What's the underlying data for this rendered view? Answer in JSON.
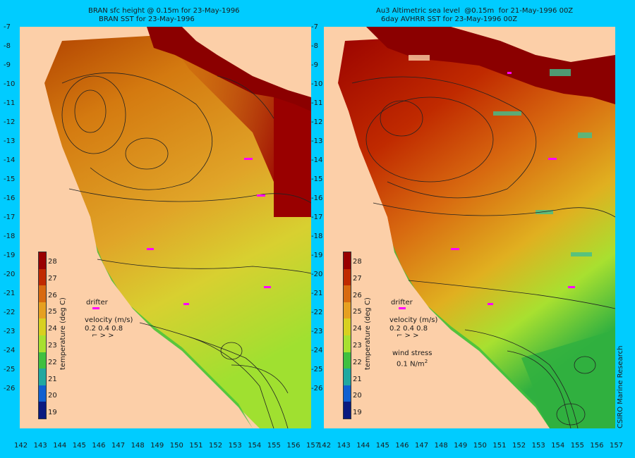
{
  "left_panel": {
    "title_line1": "BRAN sfc height @ 0.15m for 23-May-1996",
    "title_line2": "BRAN SST for 23-May-1996"
  },
  "right_panel": {
    "title_line1": "Au3 Altimetric sea level  @0.15m  for 21-May-1996 00Z",
    "title_line2": "6day AVHRR SST for 23-May-1996 00Z"
  },
  "axes": {
    "lat_ticks": [
      "-7",
      "-8",
      "-9",
      "-10",
      "-11",
      "-12",
      "-13",
      "-14",
      "-15",
      "-16",
      "-17",
      "-18",
      "-19",
      "-20",
      "-21",
      "-22",
      "-23",
      "-24",
      "-25",
      "-26"
    ],
    "left_lon_ticks": [
      "142",
      "143",
      "144",
      "145",
      "146",
      "147",
      "148",
      "149",
      "150",
      "151",
      "152",
      "153",
      "154",
      "155",
      "156",
      "157"
    ],
    "right_lon_ticks": [
      "142",
      "143",
      "144",
      "145",
      "146",
      "147",
      "148",
      "149",
      "150",
      "151",
      "152",
      "153",
      "154",
      "155",
      "156",
      "157"
    ]
  },
  "colorbar": {
    "title": "temperature (deg C)",
    "labels": [
      "28",
      "27",
      "26",
      "25",
      "24",
      "23",
      "22",
      "21",
      "20",
      "19"
    ],
    "colors": [
      "#990000",
      "#c02a00",
      "#d86a10",
      "#e6a020",
      "#d8d020",
      "#a8e030",
      "#40c040",
      "#20a8a0",
      "#1060d0",
      "#0a1a80"
    ]
  },
  "legend": {
    "drifter_label": "drifter",
    "velocity_label": "velocity (m/s)",
    "velocity_values": "0.2 0.4 0.8",
    "wind_label": "wind stress",
    "wind_value": "0.1 N/m",
    "wind_exponent": "2"
  },
  "credit": "CSIRO Marine Research",
  "colors": {
    "land": "#fccfa8",
    "background": "#00ccff",
    "warm_sea": "#990000",
    "mid_sea": "#d8860c",
    "cool_sea": "#c8e040",
    "coast_green": "#30b040",
    "drifter": "#ff00ff"
  }
}
